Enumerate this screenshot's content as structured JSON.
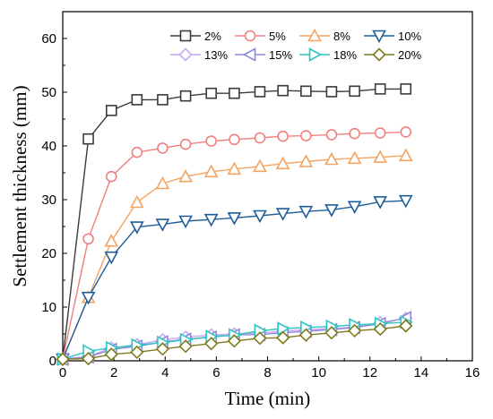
{
  "chart_data": {
    "type": "line",
    "xlabel": "Time (min)",
    "ylabel": "Settlement thickness (mm)",
    "xlim": [
      0,
      16
    ],
    "ylim": [
      0,
      65
    ],
    "xticks": [
      0,
      2,
      4,
      6,
      8,
      10,
      12,
      14,
      16
    ],
    "yticks": [
      0,
      10,
      20,
      30,
      40,
      50,
      60
    ],
    "grid": false,
    "legend": "top-right, 4 columns",
    "series": [
      {
        "name": "2%",
        "marker": "square",
        "color": "#3a3a3a",
        "x": [
          0,
          1,
          1.9,
          2.9,
          3.9,
          4.8,
          5.8,
          6.7,
          7.7,
          8.6,
          9.5,
          10.5,
          11.4,
          12.4,
          13.4
        ],
        "y": [
          0.3,
          41.3,
          46.6,
          48.6,
          48.6,
          49.3,
          49.8,
          49.8,
          50.1,
          50.3,
          50.2,
          50.1,
          50.2,
          50.6,
          50.6
        ]
      },
      {
        "name": "5%",
        "marker": "circle",
        "color": "#f08080",
        "x": [
          0,
          1,
          1.9,
          2.9,
          3.9,
          4.8,
          5.8,
          6.7,
          7.7,
          8.6,
          9.5,
          10.5,
          11.4,
          12.4,
          13.4
        ],
        "y": [
          0.3,
          22.7,
          34.3,
          38.8,
          39.6,
          40.3,
          40.9,
          41.2,
          41.5,
          41.8,
          41.9,
          42.1,
          42.3,
          42.4,
          42.6
        ]
      },
      {
        "name": "8%",
        "marker": "triangle-up",
        "color": "#f4a460",
        "x": [
          0,
          1,
          1.9,
          2.9,
          3.9,
          4.8,
          5.8,
          6.7,
          7.7,
          8.6,
          9.5,
          10.5,
          11.4,
          12.4,
          13.4
        ],
        "y": [
          0.3,
          11.8,
          22.3,
          29.5,
          33.0,
          34.3,
          35.2,
          35.7,
          36.2,
          36.7,
          37.1,
          37.5,
          37.7,
          37.9,
          38.2
        ]
      },
      {
        "name": "10%",
        "marker": "triangle-down",
        "color": "#1f5d99",
        "x": [
          0,
          1,
          1.9,
          2.9,
          3.9,
          4.8,
          5.8,
          6.7,
          7.7,
          8.6,
          9.5,
          10.5,
          11.4,
          12.4,
          13.4
        ],
        "y": [
          0.3,
          11.8,
          19.3,
          24.9,
          25.4,
          26.0,
          26.3,
          26.6,
          27.0,
          27.4,
          27.8,
          28.1,
          28.7,
          29.6,
          29.8
        ]
      },
      {
        "name": "13%",
        "marker": "diamond",
        "color": "#c9a8f0",
        "x": [
          0,
          1,
          1.9,
          2.9,
          3.9,
          4.8,
          5.8,
          6.7,
          7.7,
          8.6,
          9.5,
          10.5,
          11.4,
          12.4,
          13.4
        ],
        "y": [
          0.3,
          0.8,
          2.4,
          3.0,
          3.9,
          4.4,
          4.8,
          5.0,
          5.2,
          5.5,
          5.8,
          6.0,
          6.3,
          7.1,
          7.9
        ]
      },
      {
        "name": "15%",
        "marker": "triangle-left",
        "color": "#8f8ad8",
        "x": [
          0,
          1,
          1.9,
          2.9,
          3.9,
          4.8,
          5.8,
          6.7,
          7.7,
          8.6,
          9.5,
          10.5,
          11.4,
          12.4,
          13.4
        ],
        "y": [
          0.3,
          0.7,
          2.1,
          2.7,
          3.5,
          4.0,
          4.4,
          4.8,
          4.9,
          5.2,
          5.5,
          5.8,
          6.2,
          6.9,
          8.0
        ]
      },
      {
        "name": "18%",
        "marker": "triangle-right",
        "color": "#2ec4c4",
        "x": [
          0,
          1,
          1.9,
          2.9,
          3.9,
          4.8,
          5.8,
          6.7,
          7.7,
          8.6,
          9.5,
          10.5,
          11.4,
          12.4,
          13.4
        ],
        "y": [
          0.3,
          1.8,
          2.4,
          2.9,
          3.4,
          3.9,
          4.5,
          4.8,
          5.6,
          6.0,
          6.2,
          6.4,
          6.7,
          6.9,
          7.2
        ]
      },
      {
        "name": "20%",
        "marker": "diamond",
        "color": "#807a1e",
        "x": [
          0,
          1,
          1.9,
          2.9,
          3.9,
          4.8,
          5.8,
          6.7,
          7.7,
          8.6,
          9.5,
          10.5,
          11.4,
          12.4,
          13.4
        ],
        "y": [
          0.3,
          0.4,
          1.2,
          1.6,
          2.2,
          2.7,
          3.2,
          3.7,
          4.2,
          4.3,
          4.8,
          5.2,
          5.6,
          5.9,
          6.5
        ]
      }
    ]
  }
}
